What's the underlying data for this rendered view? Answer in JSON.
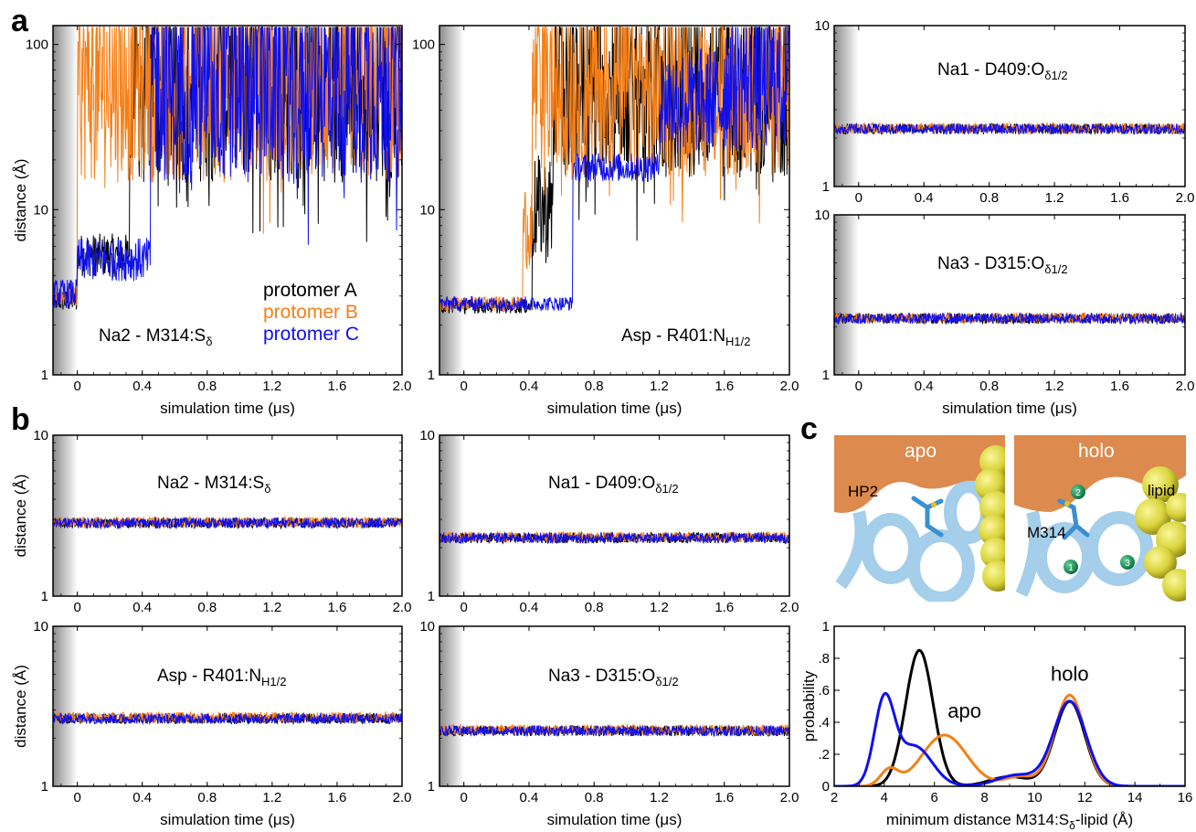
{
  "panel_letters": {
    "a": "a",
    "b": "b",
    "c": "c"
  },
  "colors": {
    "protomer_A": "#000000",
    "protomer_B": "#f57f17",
    "protomer_C": "#1010f0",
    "protein_surface": "#dd8a4e",
    "helix": "#8ec3e6",
    "lipid": "#d8d33a",
    "sodium": "#1a8a5a"
  },
  "legend": {
    "protomer_A": "protomer A",
    "protomer_B": "protomer B",
    "protomer_C": "protomer C"
  },
  "common": {
    "x_label": "simulation time (μs)",
    "y_label": "distance (Å)"
  },
  "chart_data": [
    {
      "id": "a1",
      "type": "line",
      "y_scale": "log",
      "ylim": [
        1,
        130
      ],
      "xlim": [
        -0.15,
        2.0
      ],
      "label_main": "Na2 - M314:S",
      "label_sub": "δ",
      "label_sub_kind": "sub",
      "x_ticks": [
        "0",
        "0.4",
        "0.8",
        "1.2",
        "1.6",
        "2.0"
      ],
      "y_ticks": [
        "1",
        "10",
        "100"
      ],
      "xlabel": "simulation time (μs)",
      "ylabel": "distance (Å)",
      "series": [
        {
          "name": "protomer A",
          "color": "#000000",
          "segments": [
            [
              -0.15,
              0.0,
              2.8,
              0.03
            ],
            [
              0.0,
              0.32,
              5.3,
              0.06
            ],
            [
              0.32,
              2.0,
              60,
              0.28
            ]
          ]
        },
        {
          "name": "protomer B",
          "color": "#f57f17",
          "segments": [
            [
              -0.15,
              0.0,
              3.0,
              0.03
            ],
            [
              0.0,
              2.0,
              60,
              0.28
            ]
          ]
        },
        {
          "name": "protomer C",
          "color": "#1010f0",
          "segments": [
            [
              -0.15,
              0.0,
              3.1,
              0.04
            ],
            [
              0.0,
              0.45,
              5.0,
              0.06
            ],
            [
              0.45,
              2.0,
              60,
              0.28
            ]
          ]
        }
      ]
    },
    {
      "id": "a2",
      "type": "line",
      "y_scale": "log",
      "ylim": [
        1,
        130
      ],
      "xlim": [
        -0.15,
        2.0
      ],
      "label_main": "Asp - R401:N",
      "label_sub": "H1/2",
      "label_sub_kind": "sub",
      "x_ticks": [
        "0",
        "0.4",
        "0.8",
        "1.2",
        "1.6",
        "2.0"
      ],
      "y_ticks": [
        "1",
        "10",
        "100"
      ],
      "xlabel": "simulation time (μs)",
      "ylabel": "",
      "series": [
        {
          "name": "protomer A",
          "color": "#000000",
          "segments": [
            [
              -0.15,
              0.42,
              2.6,
              0.02
            ],
            [
              0.42,
              0.55,
              10,
              0.15
            ],
            [
              0.55,
              2.0,
              55,
              0.25
            ]
          ]
        },
        {
          "name": "protomer B",
          "color": "#f57f17",
          "segments": [
            [
              -0.15,
              0.36,
              2.7,
              0.02
            ],
            [
              0.36,
              0.42,
              8,
              0.12
            ],
            [
              0.42,
              2.0,
              55,
              0.25
            ]
          ]
        },
        {
          "name": "protomer C",
          "color": "#1010f0",
          "segments": [
            [
              -0.15,
              0.67,
              2.7,
              0.02
            ],
            [
              0.67,
              1.2,
              18,
              0.04
            ],
            [
              1.2,
              1.6,
              45,
              0.15
            ],
            [
              1.6,
              2.0,
              60,
              0.2
            ]
          ]
        }
      ]
    },
    {
      "id": "a3",
      "type": "line",
      "y_scale": "log",
      "ylim": [
        1,
        10
      ],
      "xlim": [
        -0.15,
        2.0
      ],
      "label_main": "Na1 - D409:O",
      "label_sub": "δ1/2",
      "label_sub_kind": "sub",
      "x_ticks": [
        "0",
        "0.4",
        "0.8",
        "1.2",
        "1.6",
        "2.0"
      ],
      "y_ticks": [
        "1",
        "10"
      ],
      "xlabel": "",
      "ylabel": "",
      "series": [
        {
          "name": "protomer A",
          "color": "#000000",
          "segments": [
            [
              -0.15,
              2.0,
              2.28,
              0.015
            ]
          ]
        },
        {
          "name": "protomer B",
          "color": "#f57f17",
          "segments": [
            [
              -0.15,
              2.0,
              2.3,
              0.015
            ]
          ]
        },
        {
          "name": "protomer C",
          "color": "#1010f0",
          "segments": [
            [
              -0.15,
              2.0,
              2.28,
              0.015
            ]
          ]
        }
      ]
    },
    {
      "id": "a4",
      "type": "line",
      "y_scale": "log",
      "ylim": [
        1,
        10
      ],
      "xlim": [
        -0.15,
        2.0
      ],
      "label_main": "Na3 - D315:O",
      "label_sub": "δ1/2",
      "label_sub_kind": "sub",
      "x_ticks": [
        "0",
        "0.4",
        "0.8",
        "1.2",
        "1.6",
        "2.0"
      ],
      "y_ticks": [
        "1",
        "10"
      ],
      "xlabel": "simulation time (μs)",
      "ylabel": "",
      "series": [
        {
          "name": "protomer A",
          "color": "#000000",
          "segments": [
            [
              -0.15,
              2.0,
              2.25,
              0.015
            ]
          ]
        },
        {
          "name": "protomer B",
          "color": "#f57f17",
          "segments": [
            [
              -0.15,
              2.0,
              2.27,
              0.015
            ]
          ]
        },
        {
          "name": "protomer C",
          "color": "#1010f0",
          "segments": [
            [
              -0.15,
              2.0,
              2.25,
              0.015
            ]
          ]
        }
      ]
    },
    {
      "id": "b1",
      "type": "line",
      "y_scale": "log",
      "ylim": [
        1,
        10
      ],
      "xlim": [
        -0.15,
        2.0
      ],
      "label_main": "Na2 - M314:S",
      "label_sub": "δ",
      "label_sub_kind": "sub",
      "x_ticks": [
        "0",
        "0.4",
        "0.8",
        "1.2",
        "1.6",
        "2.0"
      ],
      "y_ticks": [
        "1",
        "10"
      ],
      "xlabel": "",
      "ylabel": "distance (Å)",
      "series": [
        {
          "name": "protomer A",
          "color": "#000000",
          "segments": [
            [
              -0.15,
              2.0,
              2.85,
              0.015
            ]
          ]
        },
        {
          "name": "protomer B",
          "color": "#f57f17",
          "segments": [
            [
              -0.15,
              2.0,
              2.88,
              0.015
            ]
          ]
        },
        {
          "name": "protomer C",
          "color": "#1010f0",
          "segments": [
            [
              -0.15,
              2.0,
              2.85,
              0.015
            ]
          ]
        }
      ]
    },
    {
      "id": "b2",
      "type": "line",
      "y_scale": "log",
      "ylim": [
        1,
        10
      ],
      "xlim": [
        -0.15,
        2.0
      ],
      "label_main": "Na1 - D409:O",
      "label_sub": "δ1/2",
      "label_sub_kind": "sub",
      "x_ticks": [
        "0",
        "0.4",
        "0.8",
        "1.2",
        "1.6",
        "2.0"
      ],
      "y_ticks": [
        "1",
        "10"
      ],
      "xlabel": "",
      "ylabel": "",
      "series": [
        {
          "name": "protomer A",
          "color": "#000000",
          "segments": [
            [
              -0.15,
              2.0,
              2.3,
              0.015
            ]
          ]
        },
        {
          "name": "protomer B",
          "color": "#f57f17",
          "segments": [
            [
              -0.15,
              2.0,
              2.33,
              0.015
            ]
          ]
        },
        {
          "name": "protomer C",
          "color": "#1010f0",
          "segments": [
            [
              -0.15,
              2.0,
              2.3,
              0.015
            ]
          ]
        }
      ]
    },
    {
      "id": "b3",
      "type": "line",
      "y_scale": "log",
      "ylim": [
        1,
        10
      ],
      "xlim": [
        -0.15,
        2.0
      ],
      "label_main": "Asp - R401:N",
      "label_sub": "H1/2",
      "label_sub_kind": "sub",
      "x_ticks": [
        "0",
        "0.4",
        "0.8",
        "1.2",
        "1.6",
        "2.0"
      ],
      "y_ticks": [
        "1",
        "10"
      ],
      "xlabel": "simulation time (μs)",
      "ylabel": "distance (Å)",
      "series": [
        {
          "name": "protomer A",
          "color": "#000000",
          "segments": [
            [
              -0.15,
              2.0,
              2.65,
              0.015
            ]
          ]
        },
        {
          "name": "protomer B",
          "color": "#f57f17",
          "segments": [
            [
              -0.15,
              2.0,
              2.7,
              0.015
            ]
          ]
        },
        {
          "name": "protomer C",
          "color": "#1010f0",
          "segments": [
            [
              -0.15,
              2.0,
              2.65,
              0.015
            ]
          ]
        }
      ]
    },
    {
      "id": "b4",
      "type": "line",
      "y_scale": "log",
      "ylim": [
        1,
        10
      ],
      "xlim": [
        -0.15,
        2.0
      ],
      "label_main": "Na3 - D315:O",
      "label_sub": "δ1/2",
      "label_sub_kind": "sub",
      "x_ticks": [
        "0",
        "0.4",
        "0.8",
        "1.2",
        "1.6",
        "2.0"
      ],
      "y_ticks": [
        "1",
        "10"
      ],
      "xlabel": "simulation time (μs)",
      "ylabel": "",
      "series": [
        {
          "name": "protomer A",
          "color": "#000000",
          "segments": [
            [
              -0.15,
              2.0,
              2.22,
              0.015
            ]
          ]
        },
        {
          "name": "protomer B",
          "color": "#f57f17",
          "segments": [
            [
              -0.15,
              2.0,
              2.25,
              0.015
            ]
          ]
        },
        {
          "name": "protomer C",
          "color": "#1010f0",
          "segments": [
            [
              -0.15,
              2.0,
              2.22,
              0.015
            ]
          ]
        }
      ]
    },
    {
      "id": "c",
      "type": "line",
      "y_scale": "linear",
      "xlim": [
        2,
        16
      ],
      "ylim": [
        0,
        1
      ],
      "x_ticks": [
        "2",
        "4",
        "6",
        "8",
        "10",
        "12",
        "14",
        "16"
      ],
      "y_ticks": [
        "0",
        ".2",
        ".4",
        ".6",
        ".8",
        "1"
      ],
      "xlabel_main": "minimum distance M314:S",
      "xlabel_sub": "δ",
      "xlabel_tail": "-lipid (Å)",
      "ylabel": "probability",
      "annotations": {
        "apo": "apo",
        "holo": "holo"
      },
      "series": [
        {
          "name": "protomer A",
          "color": "#000000",
          "peaks": [
            [
              5.4,
              0.85,
              0.55
            ],
            [
              9.0,
              0.06,
              0.8
            ],
            [
              11.4,
              0.53,
              0.6
            ]
          ]
        },
        {
          "name": "protomer B",
          "color": "#f57f17",
          "peaks": [
            [
              4.2,
              0.1,
              0.35
            ],
            [
              6.4,
              0.32,
              0.9
            ],
            [
              9.4,
              0.06,
              0.6
            ],
            [
              11.4,
              0.57,
              0.6
            ]
          ]
        },
        {
          "name": "protomer C",
          "color": "#1010f0",
          "peaks": [
            [
              4.0,
              0.52,
              0.4
            ],
            [
              5.2,
              0.25,
              0.7
            ],
            [
              9.3,
              0.07,
              0.8
            ],
            [
              11.4,
              0.53,
              0.65
            ]
          ]
        }
      ]
    }
  ],
  "molecule": {
    "apo_title": "apo",
    "holo_title": "holo",
    "hp2_label": "HP2",
    "m314_label": "M314",
    "lipid_label": "lipid",
    "site_1": "1",
    "site_2": "2",
    "site_3": "3"
  }
}
